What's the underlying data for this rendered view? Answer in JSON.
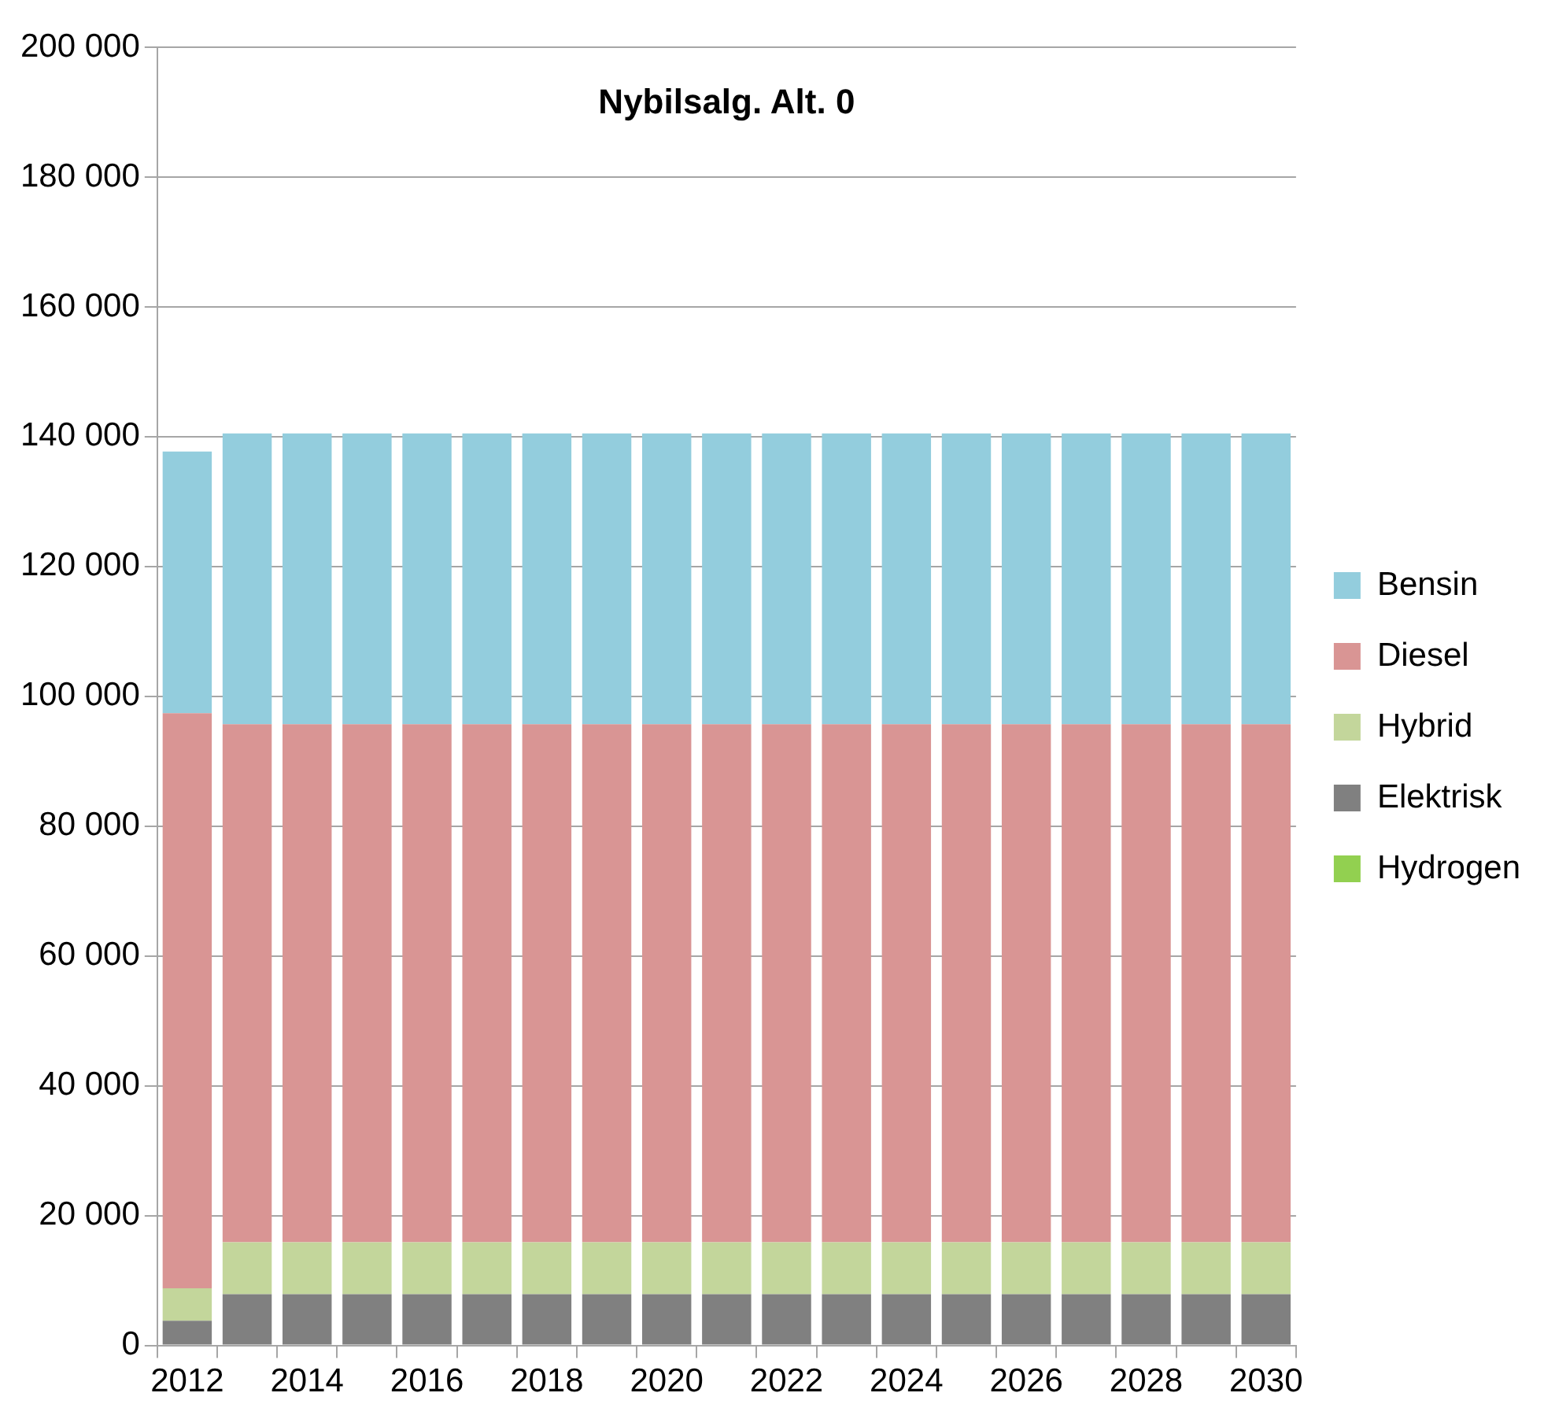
{
  "chart_data": {
    "type": "bar",
    "title": "Nybilsalg. Alt. 0",
    "stacked": true,
    "categories": [
      "2012",
      null,
      "2014",
      null,
      "2016",
      null,
      "2018",
      null,
      "2020",
      null,
      "2022",
      null,
      "2024",
      null,
      "2026",
      null,
      "2028",
      null,
      "2030"
    ],
    "series": [
      {
        "name": "Hydrogen",
        "color": "#92d050",
        "values": [
          0,
          0,
          0,
          0,
          0,
          0,
          0,
          0,
          0,
          0,
          0,
          0,
          0,
          0,
          0,
          0,
          0,
          0,
          0
        ]
      },
      {
        "name": "Elektrisk",
        "color": "#808080",
        "values": [
          3800,
          7900,
          7900,
          7900,
          7900,
          7900,
          7900,
          7900,
          7900,
          7900,
          7900,
          7900,
          7900,
          7900,
          7900,
          7900,
          7900,
          7900,
          7900
        ]
      },
      {
        "name": "Hybrid",
        "color": "#c3d69b",
        "values": [
          5000,
          8000,
          8000,
          8000,
          8000,
          8000,
          8000,
          8000,
          8000,
          8000,
          8000,
          8000,
          8000,
          8000,
          8000,
          8000,
          8000,
          8000,
          8000
        ]
      },
      {
        "name": "Diesel",
        "color": "#d99594",
        "values": [
          88600,
          79800,
          79800,
          79800,
          79800,
          79800,
          79800,
          79800,
          79800,
          79800,
          79800,
          79800,
          79800,
          79800,
          79800,
          79800,
          79800,
          79800,
          79800
        ]
      },
      {
        "name": "Bensin",
        "color": "#93cddd",
        "values": [
          40300,
          44800,
          44800,
          44800,
          44800,
          44800,
          44800,
          44800,
          44800,
          44800,
          44800,
          44800,
          44800,
          44800,
          44800,
          44800,
          44800,
          44800,
          44800
        ]
      }
    ],
    "ylim": [
      0,
      200000
    ],
    "yticks": [
      0,
      {
        "value": 20000,
        "label": "20 000"
      },
      {
        "value": 40000,
        "label": "40 000"
      },
      {
        "value": 60000,
        "label": "60 000"
      },
      {
        "value": 80000,
        "label": "80 000"
      },
      {
        "value": 100000,
        "label": "100 000"
      },
      {
        "value": 120000,
        "label": "120 000"
      },
      {
        "value": 140000,
        "label": "140 000"
      },
      {
        "value": 160000,
        "label": "160 000"
      },
      {
        "value": 180000,
        "label": "180 000"
      },
      {
        "value": 200000,
        "label": "200 000"
      }
    ],
    "grid": "y",
    "legend": "right"
  }
}
